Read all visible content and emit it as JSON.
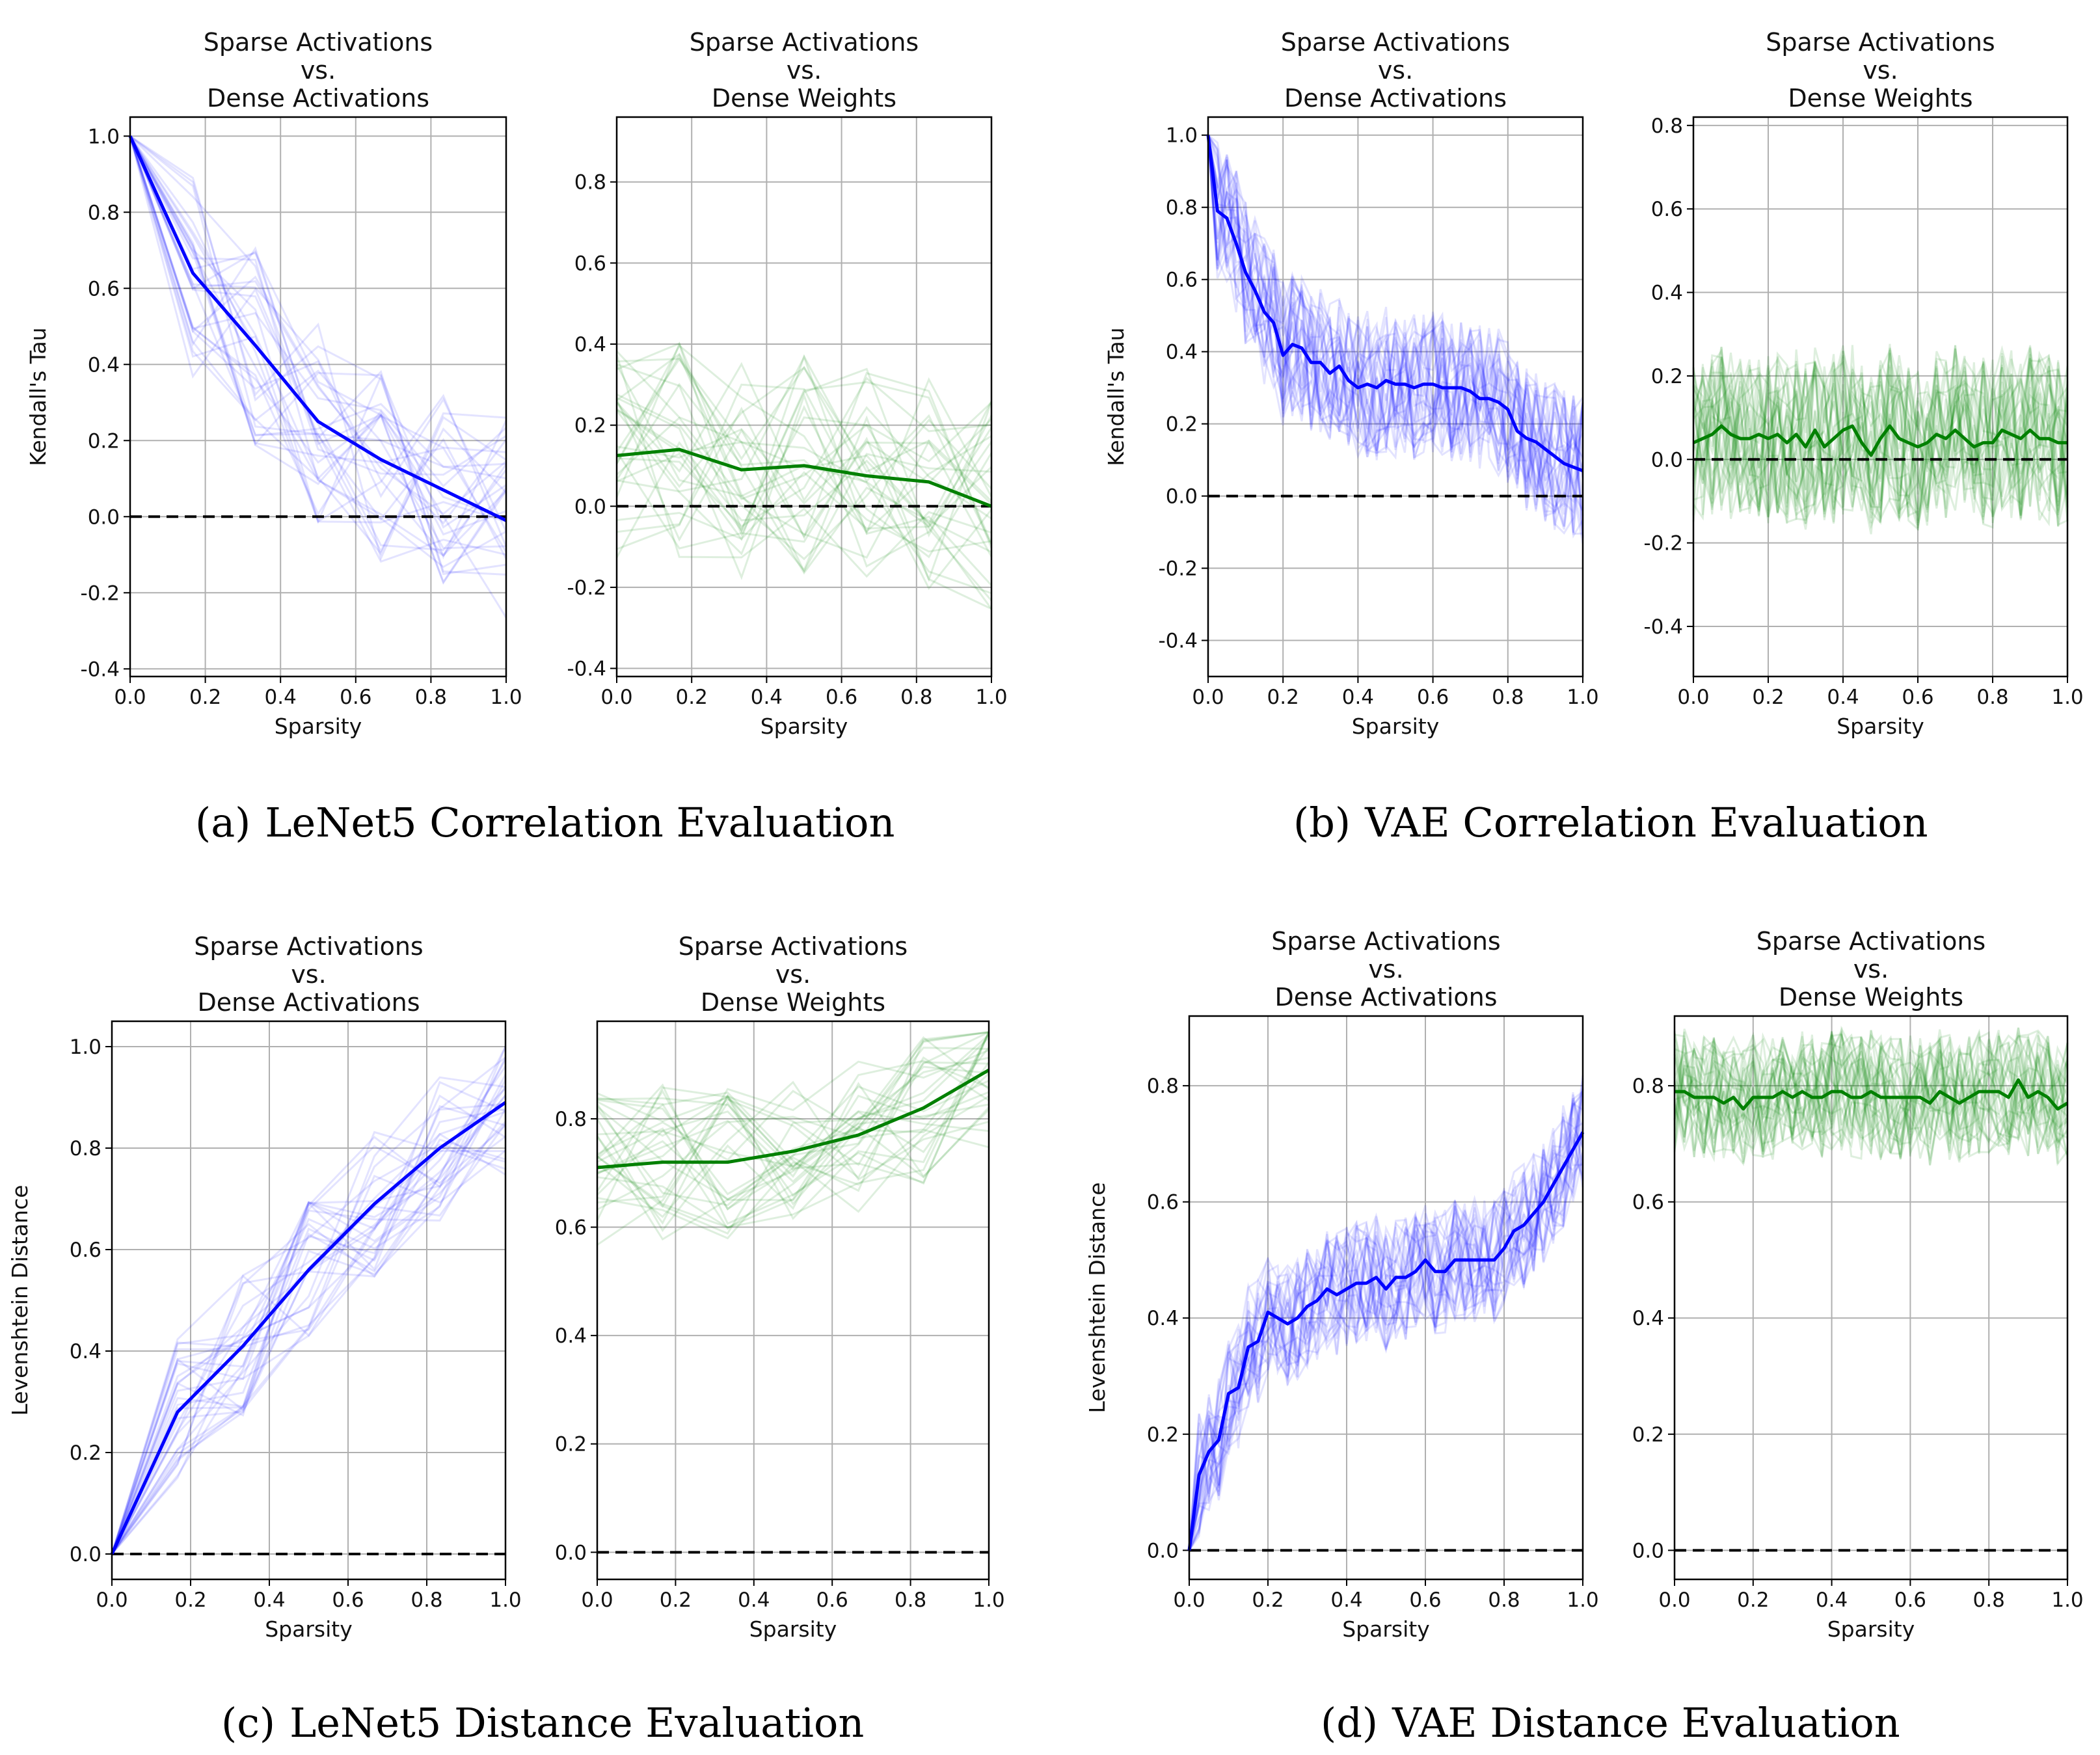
{
  "figure": {
    "captions": [
      {
        "label": "(a)",
        "text": "LeNet5 Correlation Evaluation"
      },
      {
        "label": "(b)",
        "text": "VAE Correlation Evaluation"
      },
      {
        "label": "(c)",
        "text": "LeNet5 Distance Evaluation"
      },
      {
        "label": "(d)",
        "text": "VAE Distance Evaluation"
      }
    ]
  },
  "chart_data": [
    {
      "type": "line",
      "group": "a",
      "title": [
        "Sparse Activations",
        "vs.",
        "Dense Activations"
      ],
      "xlabel": "Sparsity",
      "ylabel": "Kendall's Tau",
      "xlim": [
        0,
        1
      ],
      "ylim": [
        -0.42,
        1.05
      ],
      "xticks": [
        "0.0",
        "0.2",
        "0.4",
        "0.6",
        "0.8",
        "1.0"
      ],
      "yticks": [
        "-0.4",
        "-0.2",
        "0.0",
        "0.2",
        "0.4",
        "0.6",
        "0.8",
        "1.0"
      ],
      "color": "#0000ff",
      "grid": true,
      "baseline": 0,
      "series": [
        {
          "name": "mean",
          "x": [
            0,
            0.167,
            0.333,
            0.5,
            0.667,
            0.833,
            1.0
          ],
          "values": [
            1.0,
            0.64,
            0.45,
            0.25,
            0.15,
            0.07,
            -0.01
          ]
        }
      ],
      "trial_count": 30
    },
    {
      "type": "line",
      "group": "a",
      "title": [
        "Sparse Activations",
        "vs.",
        "Dense Weights"
      ],
      "xlabel": "Sparsity",
      "ylabel": "",
      "xlim": [
        0,
        1
      ],
      "ylim": [
        -0.42,
        0.96
      ],
      "xticks": [
        "0.0",
        "0.2",
        "0.4",
        "0.6",
        "0.8",
        "1.0"
      ],
      "yticks": [
        "-0.4",
        "-0.2",
        "0.0",
        "0.2",
        "0.4",
        "0.6",
        "0.8"
      ],
      "color": "#008000",
      "grid": true,
      "baseline": 0,
      "series": [
        {
          "name": "mean",
          "x": [
            0,
            0.167,
            0.333,
            0.5,
            0.667,
            0.833,
            1.0
          ],
          "values": [
            0.125,
            0.14,
            0.09,
            0.1,
            0.075,
            0.06,
            0.0
          ]
        }
      ],
      "trial_count": 30
    },
    {
      "type": "line",
      "group": "b",
      "title": [
        "Sparse Activations",
        "vs.",
        "Dense Activations"
      ],
      "xlabel": "Sparsity",
      "ylabel": "Kendall's Tau",
      "xlim": [
        0,
        1
      ],
      "ylim": [
        -0.5,
        1.05
      ],
      "xticks": [
        "0.0",
        "0.2",
        "0.4",
        "0.6",
        "0.8",
        "1.0"
      ],
      "yticks": [
        "-0.4",
        "-0.2",
        "0.0",
        "0.2",
        "0.4",
        "0.6",
        "0.8",
        "1.0"
      ],
      "color": "#0000ff",
      "grid": true,
      "baseline": 0,
      "series": [
        {
          "name": "mean",
          "x": [
            0,
            0.025,
            0.05,
            0.075,
            0.1,
            0.125,
            0.15,
            0.175,
            0.2,
            0.225,
            0.25,
            0.275,
            0.3,
            0.325,
            0.35,
            0.375,
            0.4,
            0.425,
            0.45,
            0.475,
            0.5,
            0.525,
            0.55,
            0.575,
            0.6,
            0.625,
            0.65,
            0.675,
            0.7,
            0.725,
            0.75,
            0.775,
            0.8,
            0.825,
            0.85,
            0.875,
            0.9,
            0.925,
            0.95,
            0.975,
            1.0
          ],
          "values": [
            1.0,
            0.79,
            0.77,
            0.7,
            0.62,
            0.57,
            0.51,
            0.48,
            0.39,
            0.42,
            0.41,
            0.37,
            0.37,
            0.34,
            0.36,
            0.32,
            0.3,
            0.31,
            0.3,
            0.32,
            0.31,
            0.31,
            0.3,
            0.31,
            0.31,
            0.3,
            0.3,
            0.3,
            0.29,
            0.27,
            0.27,
            0.26,
            0.24,
            0.18,
            0.16,
            0.15,
            0.13,
            0.11,
            0.09,
            0.08,
            0.07
          ]
        }
      ],
      "trial_count": 30
    },
    {
      "type": "line",
      "group": "b",
      "title": [
        "Sparse Activations",
        "vs.",
        "Dense Weights"
      ],
      "xlabel": "Sparsity",
      "ylabel": "",
      "xlim": [
        0,
        1
      ],
      "ylim": [
        -0.52,
        0.82
      ],
      "xticks": [
        "0.0",
        "0.2",
        "0.4",
        "0.6",
        "0.8",
        "1.0"
      ],
      "yticks": [
        "-0.4",
        "-0.2",
        "0.0",
        "0.2",
        "0.4",
        "0.6",
        "0.8"
      ],
      "color": "#008000",
      "grid": true,
      "baseline": 0,
      "series": [
        {
          "name": "mean",
          "x": [
            0,
            0.025,
            0.05,
            0.075,
            0.1,
            0.125,
            0.15,
            0.175,
            0.2,
            0.225,
            0.25,
            0.275,
            0.3,
            0.325,
            0.35,
            0.375,
            0.4,
            0.425,
            0.45,
            0.475,
            0.5,
            0.525,
            0.55,
            0.575,
            0.6,
            0.625,
            0.65,
            0.675,
            0.7,
            0.725,
            0.75,
            0.775,
            0.8,
            0.825,
            0.85,
            0.875,
            0.9,
            0.925,
            0.95,
            0.975,
            1.0
          ],
          "values": [
            0.04,
            0.05,
            0.06,
            0.08,
            0.06,
            0.05,
            0.05,
            0.06,
            0.05,
            0.06,
            0.04,
            0.06,
            0.03,
            0.07,
            0.03,
            0.05,
            0.07,
            0.08,
            0.04,
            0.01,
            0.05,
            0.08,
            0.05,
            0.04,
            0.03,
            0.04,
            0.06,
            0.05,
            0.07,
            0.05,
            0.03,
            0.04,
            0.04,
            0.07,
            0.06,
            0.05,
            0.07,
            0.05,
            0.05,
            0.04,
            0.04
          ]
        }
      ],
      "trial_count": 30
    },
    {
      "type": "line",
      "group": "c",
      "title": [
        "Sparse Activations",
        "vs.",
        "Dense Activations"
      ],
      "xlabel": "Sparsity",
      "ylabel": "Levenshtein Distance",
      "xlim": [
        0,
        1
      ],
      "ylim": [
        -0.05,
        1.05
      ],
      "xticks": [
        "0.0",
        "0.2",
        "0.4",
        "0.6",
        "0.8",
        "1.0"
      ],
      "yticks": [
        "0.0",
        "0.2",
        "0.4",
        "0.6",
        "0.8",
        "1.0"
      ],
      "color": "#0000ff",
      "grid": true,
      "baseline": 0,
      "series": [
        {
          "name": "mean",
          "x": [
            0,
            0.167,
            0.333,
            0.5,
            0.667,
            0.833,
            1.0
          ],
          "values": [
            0.0,
            0.28,
            0.41,
            0.56,
            0.69,
            0.8,
            0.89
          ]
        }
      ],
      "trial_count": 30
    },
    {
      "type": "line",
      "group": "c",
      "title": [
        "Sparse Activations",
        "vs.",
        "Dense Weights"
      ],
      "xlabel": "Sparsity",
      "ylabel": "",
      "xlim": [
        0,
        1
      ],
      "ylim": [
        -0.05,
        0.98
      ],
      "xticks": [
        "0.0",
        "0.2",
        "0.4",
        "0.6",
        "0.8",
        "1.0"
      ],
      "yticks": [
        "0.0",
        "0.2",
        "0.4",
        "0.6",
        "0.8"
      ],
      "color": "#008000",
      "grid": true,
      "baseline": 0,
      "series": [
        {
          "name": "mean",
          "x": [
            0,
            0.167,
            0.333,
            0.5,
            0.667,
            0.833,
            1.0
          ],
          "values": [
            0.71,
            0.72,
            0.72,
            0.74,
            0.77,
            0.82,
            0.89
          ]
        }
      ],
      "trial_count": 30
    },
    {
      "type": "line",
      "group": "d",
      "title": [
        "Sparse Activations",
        "vs.",
        "Dense Activations"
      ],
      "xlabel": "Sparsity",
      "ylabel": "Levenshtein Distance",
      "xlim": [
        0,
        1
      ],
      "ylim": [
        -0.05,
        0.92
      ],
      "xticks": [
        "0.0",
        "0.2",
        "0.4",
        "0.6",
        "0.8",
        "1.0"
      ],
      "yticks": [
        "0.0",
        "0.2",
        "0.4",
        "0.6",
        "0.8"
      ],
      "color": "#0000ff",
      "grid": true,
      "baseline": 0,
      "series": [
        {
          "name": "mean",
          "x": [
            0,
            0.025,
            0.05,
            0.075,
            0.1,
            0.125,
            0.15,
            0.175,
            0.2,
            0.225,
            0.25,
            0.275,
            0.3,
            0.325,
            0.35,
            0.375,
            0.4,
            0.425,
            0.45,
            0.475,
            0.5,
            0.525,
            0.55,
            0.575,
            0.6,
            0.625,
            0.65,
            0.675,
            0.7,
            0.725,
            0.75,
            0.775,
            0.8,
            0.825,
            0.85,
            0.875,
            0.9,
            0.925,
            0.95,
            0.975,
            1.0
          ],
          "values": [
            0.0,
            0.13,
            0.17,
            0.19,
            0.27,
            0.28,
            0.35,
            0.36,
            0.41,
            0.4,
            0.39,
            0.4,
            0.42,
            0.43,
            0.45,
            0.44,
            0.45,
            0.46,
            0.46,
            0.47,
            0.45,
            0.47,
            0.47,
            0.48,
            0.5,
            0.48,
            0.48,
            0.5,
            0.5,
            0.5,
            0.5,
            0.5,
            0.52,
            0.55,
            0.56,
            0.58,
            0.6,
            0.63,
            0.66,
            0.69,
            0.72
          ]
        }
      ],
      "trial_count": 30
    },
    {
      "type": "line",
      "group": "d",
      "title": [
        "Sparse Activations",
        "vs.",
        "Dense Weights"
      ],
      "xlabel": "Sparsity",
      "ylabel": "",
      "xlim": [
        0,
        1
      ],
      "ylim": [
        -0.05,
        0.92
      ],
      "xticks": [
        "0.0",
        "0.2",
        "0.4",
        "0.6",
        "0.8",
        "1.0"
      ],
      "yticks": [
        "0.0",
        "0.2",
        "0.4",
        "0.6",
        "0.8"
      ],
      "color": "#008000",
      "grid": true,
      "baseline": 0,
      "series": [
        {
          "name": "mean",
          "x": [
            0,
            0.025,
            0.05,
            0.075,
            0.1,
            0.125,
            0.15,
            0.175,
            0.2,
            0.225,
            0.25,
            0.275,
            0.3,
            0.325,
            0.35,
            0.375,
            0.4,
            0.425,
            0.45,
            0.475,
            0.5,
            0.525,
            0.55,
            0.575,
            0.6,
            0.625,
            0.65,
            0.675,
            0.7,
            0.725,
            0.75,
            0.775,
            0.8,
            0.825,
            0.85,
            0.875,
            0.9,
            0.925,
            0.95,
            0.975,
            1.0
          ],
          "values": [
            0.79,
            0.79,
            0.78,
            0.78,
            0.78,
            0.77,
            0.78,
            0.76,
            0.78,
            0.78,
            0.78,
            0.79,
            0.78,
            0.79,
            0.78,
            0.78,
            0.79,
            0.79,
            0.78,
            0.78,
            0.79,
            0.78,
            0.78,
            0.78,
            0.78,
            0.78,
            0.77,
            0.79,
            0.78,
            0.77,
            0.78,
            0.79,
            0.79,
            0.79,
            0.78,
            0.81,
            0.78,
            0.79,
            0.78,
            0.76,
            0.77
          ]
        }
      ],
      "trial_count": 30
    }
  ]
}
